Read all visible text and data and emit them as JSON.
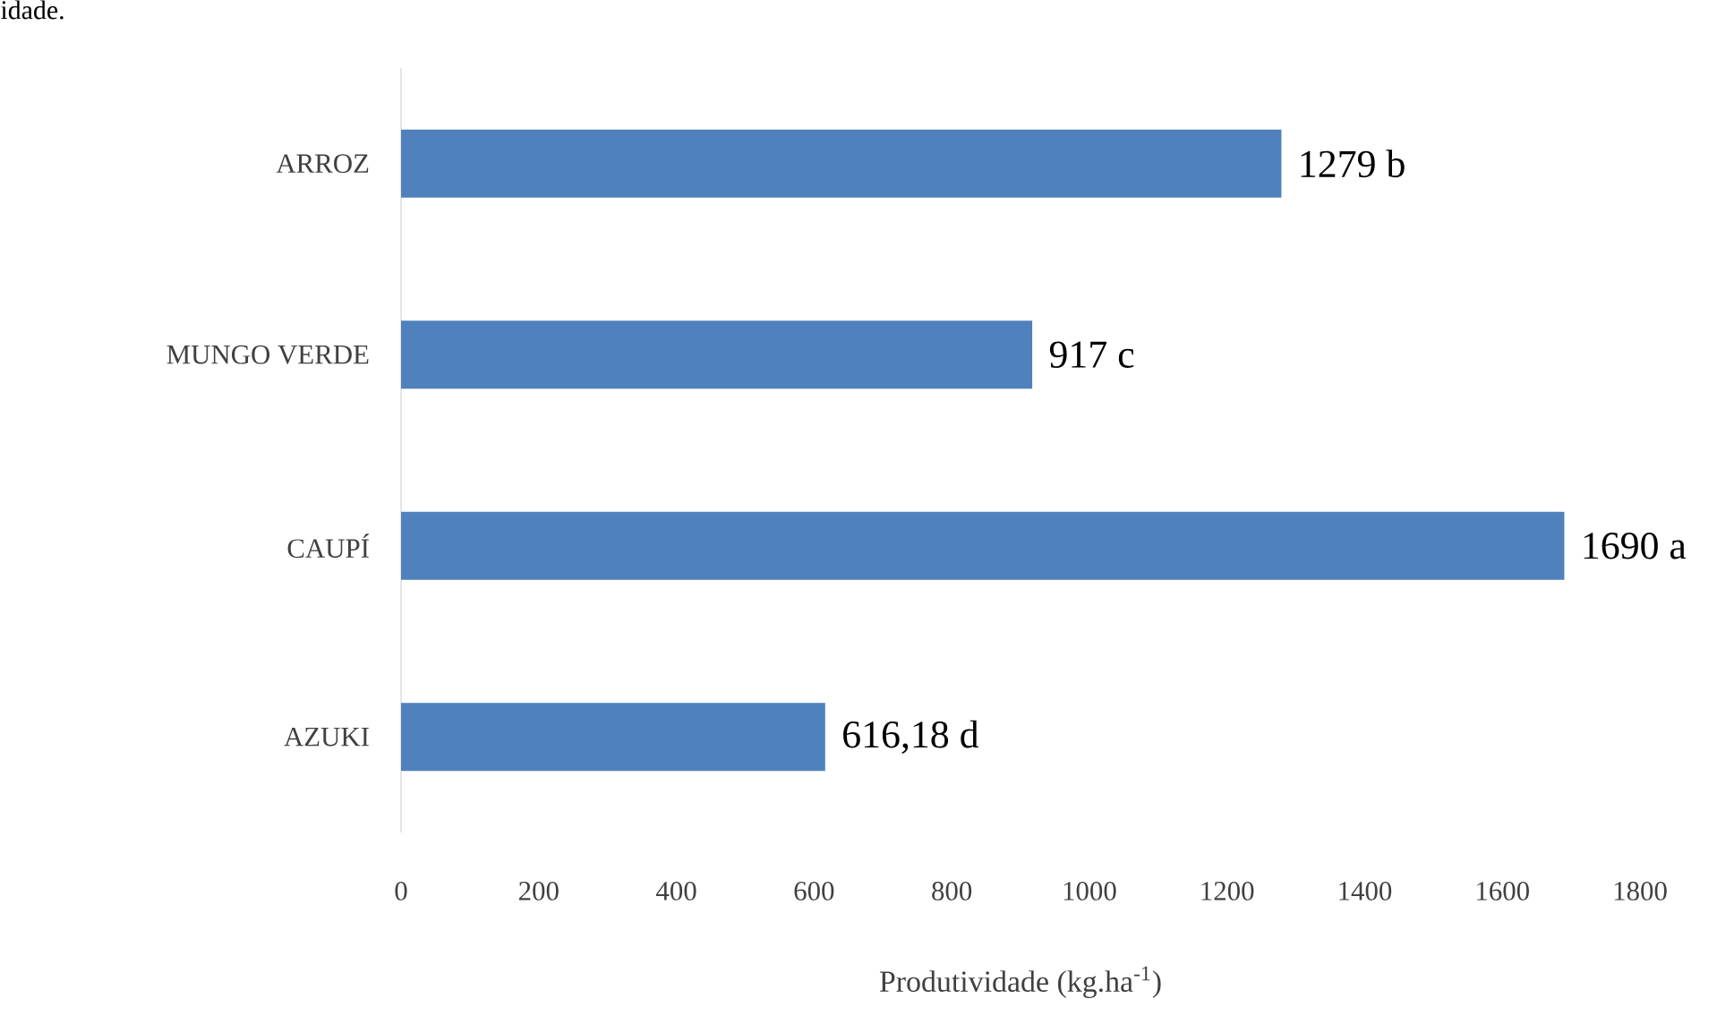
{
  "chart_data": {
    "type": "bar",
    "orientation": "horizontal",
    "xlabel": "Produtividade (kg.ha$^{-1}$)",
    "categories": [
      "ARROZ",
      "MUNGO VERDE",
      "CAUPÍ",
      "AZUKI"
    ],
    "values": [
      1279,
      917,
      1690,
      616.18
    ],
    "value_labels": [
      "1279 b",
      "917 c",
      "1690 a",
      "616,18 d"
    ],
    "color": "#4f81bd",
    "xlim": [
      0,
      1800
    ],
    "xticks": [
      0,
      200,
      400,
      600,
      800,
      1000,
      1200,
      1400,
      1600,
      1800
    ],
    "grid": false,
    "annotations": [
      "idade."
    ]
  }
}
